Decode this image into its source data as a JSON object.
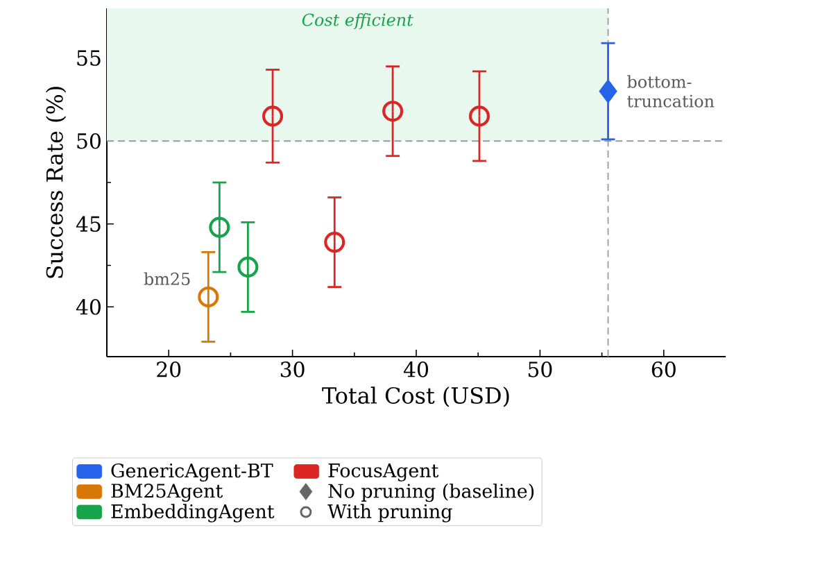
{
  "chart_data": {
    "type": "scatter",
    "xlabel": "Total Cost (USD)",
    "ylabel": "Success Rate (%)",
    "xlim": [
      15,
      65
    ],
    "ylim": [
      37,
      58
    ],
    "xticks": [
      20,
      30,
      40,
      50,
      60
    ],
    "yticks": [
      40,
      45,
      50,
      55
    ],
    "grid": false,
    "legend": "bottom",
    "series": [
      {
        "name": "GenericAgent-BT",
        "color": "#2563eb",
        "marker": "diamond",
        "x": [
          55.5
        ],
        "values": [
          53.0
        ],
        "errors": [
          2.9
        ]
      },
      {
        "name": "FocusAgent",
        "color": "#dc2626",
        "marker": "circle",
        "x": [
          28.4,
          38.1,
          45.1,
          33.4
        ],
        "values": [
          51.5,
          51.8,
          51.5,
          43.9
        ],
        "errors": [
          2.8,
          2.7,
          2.7,
          2.7
        ]
      },
      {
        "name": "BM25Agent",
        "color": "#d97706",
        "marker": "circle",
        "x": [
          23.2
        ],
        "values": [
          40.6
        ],
        "errors": [
          2.7
        ]
      },
      {
        "name": "No pruning (baseline)",
        "color": "#666666",
        "marker": "diamond",
        "values": [
          null
        ]
      },
      {
        "name": "EmbeddingAgent",
        "color": "#16a34a",
        "marker": "circle",
        "x": [
          24.1,
          26.4
        ],
        "values": [
          44.8,
          42.4
        ],
        "errors": [
          2.7,
          2.7
        ]
      },
      {
        "name": "With pruning",
        "color": "#666666",
        "marker": "circle",
        "values": [
          null
        ]
      }
    ],
    "ref_lines": [
      {
        "axis": "y",
        "value": 50,
        "color": "#999999",
        "line_style": "dashed"
      },
      {
        "axis": "x",
        "value": 55.5,
        "color": "#999999",
        "line_style": "dashed"
      }
    ],
    "bands": [
      {
        "axis": "y",
        "from": 50,
        "to": 58,
        "label": "Cost efficient",
        "color": "#e8f8ef"
      }
    ],
    "annotations": [
      {
        "text": "bm25",
        "x": 23.2,
        "y": 40.6
      },
      {
        "text": "bottom-truncation",
        "x": 55.5,
        "y": 53.0
      }
    ]
  }
}
